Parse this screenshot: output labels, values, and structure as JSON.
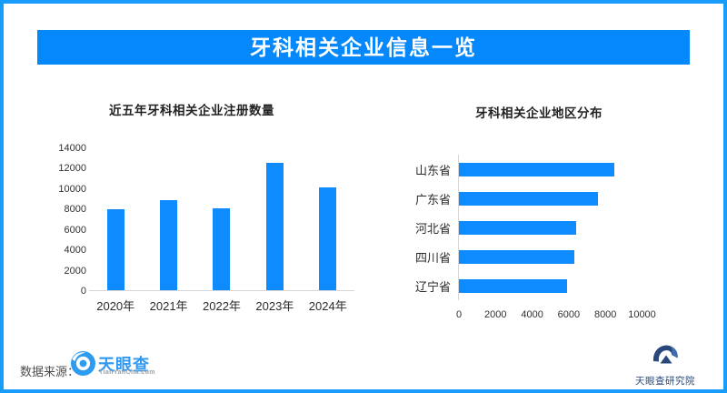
{
  "page": {
    "title": "牙科相关企业信息一览"
  },
  "colors": {
    "frame_blue": "#1a9cfc",
    "banner_blue": "#0588fb",
    "bar_blue": "#0e8bfe",
    "axis_gray": "#d6d6d6",
    "tyc_logo_blue": "#2d9bf0",
    "institute_navy": "#28487b"
  },
  "chart_data": [
    {
      "type": "bar",
      "title": "近五年牙科相关企业注册数量",
      "categories": [
        "2020年",
        "2021年",
        "2022年",
        "2023年",
        "2024年"
      ],
      "values": [
        7900,
        8850,
        8050,
        12450,
        10050
      ],
      "xlabel": "",
      "ylabel": "",
      "ylim": [
        0,
        14000
      ],
      "yticks": [
        0,
        2000,
        4000,
        6000,
        8000,
        10000,
        12000,
        14000
      ],
      "grid": false,
      "legend": "none",
      "bar_color": "#0e8bfe"
    },
    {
      "type": "bar",
      "orientation": "horizontal",
      "title": "牙科相关企业地区分布",
      "categories": [
        "山东省",
        "广东省",
        "河北省",
        "四川省",
        "辽宁省"
      ],
      "values": [
        8500,
        7600,
        6400,
        6300,
        5900
      ],
      "xlabel": "",
      "ylabel": "",
      "xlim": [
        0,
        10000
      ],
      "xticks": [
        0,
        2000,
        4000,
        6000,
        8000,
        10000
      ],
      "grid": false,
      "legend": "none",
      "bar_color": "#0e8bfe"
    }
  ],
  "footer": {
    "source_label": "数据来源：",
    "source_logo_text": "天眼查",
    "source_logo_sub": "TianYanCha.com",
    "institute_logo_text": "天眼查研究院"
  }
}
